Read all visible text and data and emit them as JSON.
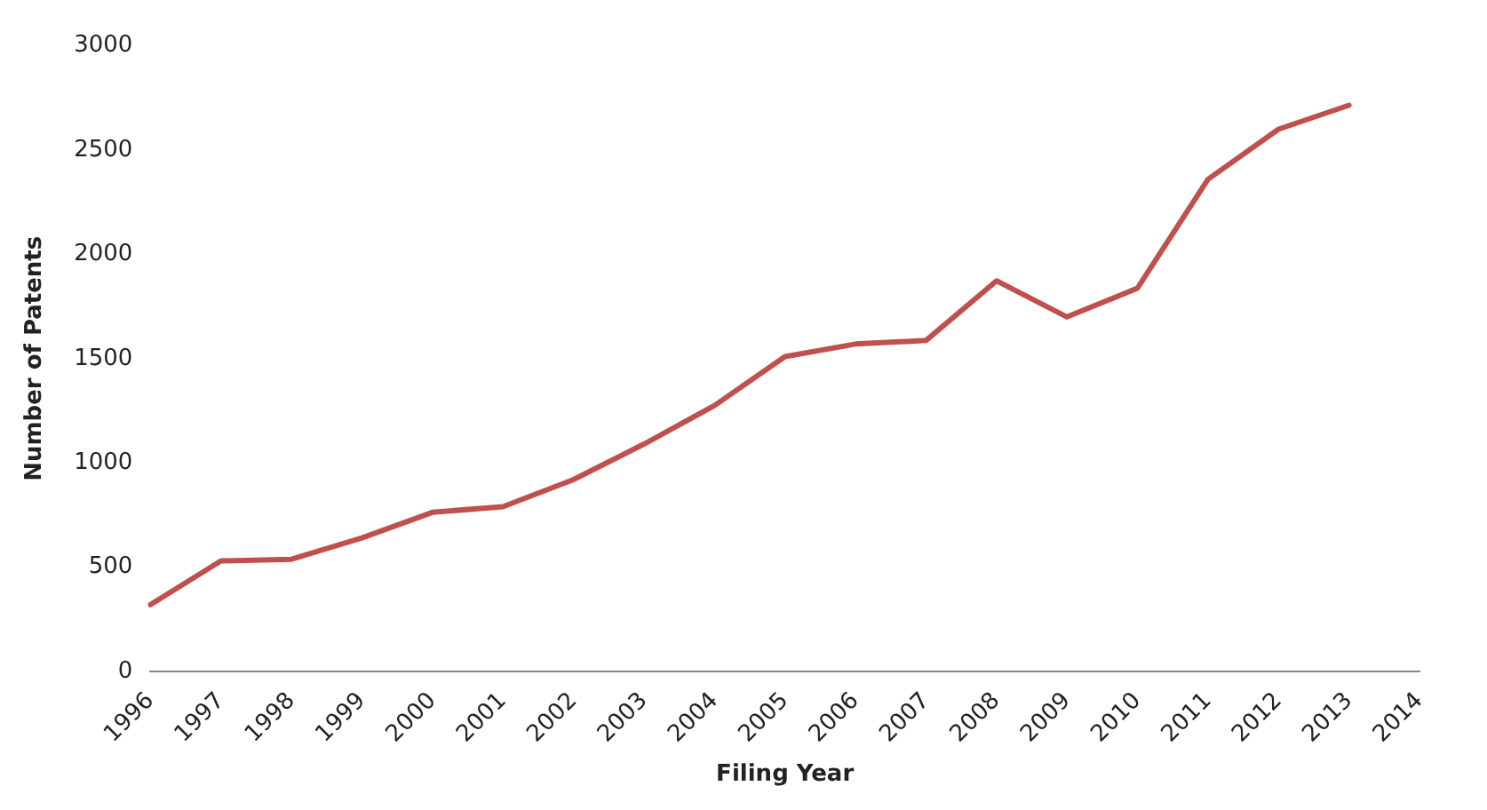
{
  "chart_data": {
    "type": "line",
    "xlabel": "Filing Year",
    "ylabel": "Number of Patents",
    "categories": [
      "1996",
      "1997",
      "1998",
      "1999",
      "2000",
      "2001",
      "2002",
      "2003",
      "2004",
      "2005",
      "2006",
      "2007",
      "2008",
      "2009",
      "2010",
      "2011",
      "2012",
      "2013",
      "2014"
    ],
    "series": [
      {
        "color": "#c0504d",
        "values": [
          320,
          530,
          538,
          640,
          763,
          790,
          920,
          1090,
          1275,
          1510,
          1570,
          1587,
          1873,
          1700,
          1838,
          2360,
          2600,
          2715,
          null
        ]
      }
    ],
    "ylim": [
      0,
      3000
    ],
    "yticks": [
      0,
      500,
      1000,
      1500,
      2000,
      2500,
      3000
    ],
    "grid": false,
    "legend": false,
    "marker": "none",
    "line_style": "solid"
  }
}
